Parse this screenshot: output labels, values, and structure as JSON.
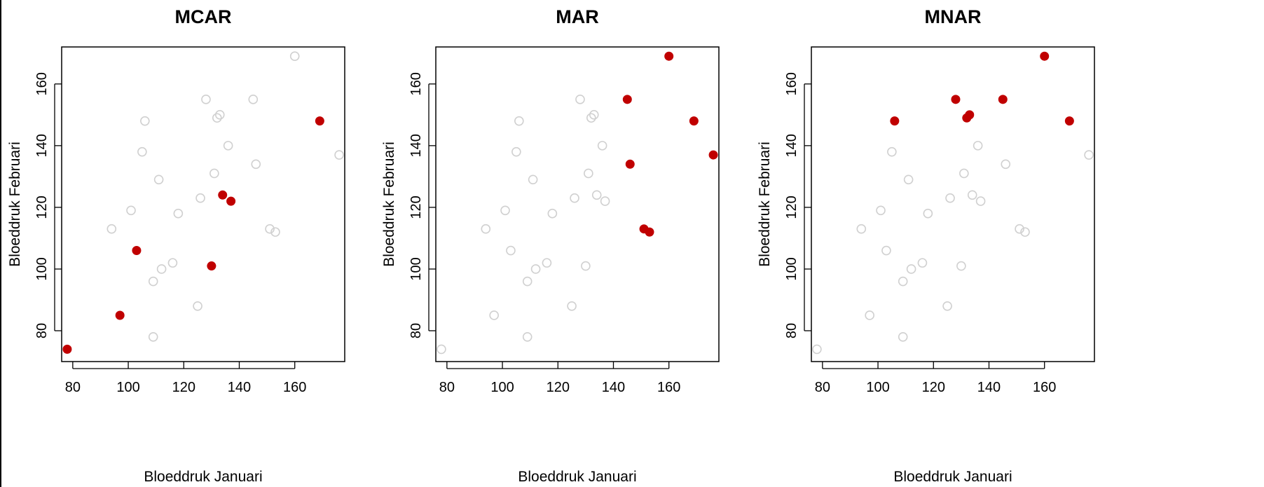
{
  "colors": {
    "observed": "#d0d0d0",
    "missing": "#c00000",
    "axis": "#000000"
  },
  "chart_data": [
    {
      "type": "scatter",
      "title": "MCAR",
      "xlabel": "Bloeddruk Januari",
      "ylabel": "Bloeddruk Februari",
      "xlim": [
        76,
        178
      ],
      "ylim": [
        70,
        172
      ],
      "xticks": [
        80,
        100,
        120,
        140,
        160
      ],
      "yticks": [
        80,
        100,
        120,
        140,
        160
      ],
      "grid": false,
      "series": [
        {
          "marker": "open-circle",
          "points": [
            {
              "x": 94,
              "y": 113
            },
            {
              "x": 101,
              "y": 119
            },
            {
              "x": 105,
              "y": 138
            },
            {
              "x": 106,
              "y": 148
            },
            {
              "x": 109,
              "y": 96
            },
            {
              "x": 109,
              "y": 78
            },
            {
              "x": 111,
              "y": 129
            },
            {
              "x": 112,
              "y": 100
            },
            {
              "x": 116,
              "y": 102
            },
            {
              "x": 118,
              "y": 118
            },
            {
              "x": 125,
              "y": 88
            },
            {
              "x": 126,
              "y": 123
            },
            {
              "x": 128,
              "y": 155
            },
            {
              "x": 131,
              "y": 131
            },
            {
              "x": 132,
              "y": 149
            },
            {
              "x": 133,
              "y": 150
            },
            {
              "x": 136,
              "y": 140
            },
            {
              "x": 145,
              "y": 155
            },
            {
              "x": 146,
              "y": 134
            },
            {
              "x": 151,
              "y": 113
            },
            {
              "x": 153,
              "y": 112
            },
            {
              "x": 160,
              "y": 169
            },
            {
              "x": 176,
              "y": 137
            }
          ]
        },
        {
          "marker": "filled-circle",
          "points": [
            {
              "x": 78,
              "y": 74
            },
            {
              "x": 97,
              "y": 85
            },
            {
              "x": 103,
              "y": 106
            },
            {
              "x": 130,
              "y": 101
            },
            {
              "x": 134,
              "y": 124
            },
            {
              "x": 137,
              "y": 122
            },
            {
              "x": 169,
              "y": 148
            }
          ]
        }
      ]
    },
    {
      "type": "scatter",
      "title": "MAR",
      "xlabel": "Bloeddruk Januari",
      "ylabel": "Bloeddruk Februari",
      "xlim": [
        76,
        178
      ],
      "ylim": [
        70,
        172
      ],
      "xticks": [
        80,
        100,
        120,
        140,
        160
      ],
      "yticks": [
        80,
        100,
        120,
        140,
        160
      ],
      "grid": false,
      "series": [
        {
          "marker": "open-circle",
          "points": [
            {
              "x": 78,
              "y": 74
            },
            {
              "x": 94,
              "y": 113
            },
            {
              "x": 97,
              "y": 85
            },
            {
              "x": 101,
              "y": 119
            },
            {
              "x": 103,
              "y": 106
            },
            {
              "x": 105,
              "y": 138
            },
            {
              "x": 106,
              "y": 148
            },
            {
              "x": 109,
              "y": 96
            },
            {
              "x": 109,
              "y": 78
            },
            {
              "x": 111,
              "y": 129
            },
            {
              "x": 112,
              "y": 100
            },
            {
              "x": 116,
              "y": 102
            },
            {
              "x": 118,
              "y": 118
            },
            {
              "x": 125,
              "y": 88
            },
            {
              "x": 126,
              "y": 123
            },
            {
              "x": 128,
              "y": 155
            },
            {
              "x": 130,
              "y": 101
            },
            {
              "x": 131,
              "y": 131
            },
            {
              "x": 132,
              "y": 149
            },
            {
              "x": 133,
              "y": 150
            },
            {
              "x": 134,
              "y": 124
            },
            {
              "x": 136,
              "y": 140
            },
            {
              "x": 137,
              "y": 122
            }
          ]
        },
        {
          "marker": "filled-circle",
          "points": [
            {
              "x": 145,
              "y": 155
            },
            {
              "x": 146,
              "y": 134
            },
            {
              "x": 151,
              "y": 113
            },
            {
              "x": 153,
              "y": 112
            },
            {
              "x": 160,
              "y": 169
            },
            {
              "x": 169,
              "y": 148
            },
            {
              "x": 176,
              "y": 137
            }
          ]
        }
      ]
    },
    {
      "type": "scatter",
      "title": "MNAR",
      "xlabel": "Bloeddruk Januari",
      "ylabel": "Bloeddruk Februari",
      "xlim": [
        76,
        178
      ],
      "ylim": [
        70,
        172
      ],
      "xticks": [
        80,
        100,
        120,
        140,
        160
      ],
      "yticks": [
        80,
        100,
        120,
        140,
        160
      ],
      "grid": false,
      "series": [
        {
          "marker": "open-circle",
          "points": [
            {
              "x": 78,
              "y": 74
            },
            {
              "x": 94,
              "y": 113
            },
            {
              "x": 97,
              "y": 85
            },
            {
              "x": 101,
              "y": 119
            },
            {
              "x": 103,
              "y": 106
            },
            {
              "x": 105,
              "y": 138
            },
            {
              "x": 109,
              "y": 96
            },
            {
              "x": 109,
              "y": 78
            },
            {
              "x": 111,
              "y": 129
            },
            {
              "x": 112,
              "y": 100
            },
            {
              "x": 116,
              "y": 102
            },
            {
              "x": 118,
              "y": 118
            },
            {
              "x": 125,
              "y": 88
            },
            {
              "x": 126,
              "y": 123
            },
            {
              "x": 130,
              "y": 101
            },
            {
              "x": 131,
              "y": 131
            },
            {
              "x": 134,
              "y": 124
            },
            {
              "x": 136,
              "y": 140
            },
            {
              "x": 137,
              "y": 122
            },
            {
              "x": 146,
              "y": 134
            },
            {
              "x": 151,
              "y": 113
            },
            {
              "x": 153,
              "y": 112
            },
            {
              "x": 176,
              "y": 137
            }
          ]
        },
        {
          "marker": "filled-circle",
          "points": [
            {
              "x": 106,
              "y": 148
            },
            {
              "x": 128,
              "y": 155
            },
            {
              "x": 132,
              "y": 149
            },
            {
              "x": 133,
              "y": 150
            },
            {
              "x": 145,
              "y": 155
            },
            {
              "x": 160,
              "y": 169
            },
            {
              "x": 169,
              "y": 148
            }
          ]
        }
      ]
    }
  ]
}
